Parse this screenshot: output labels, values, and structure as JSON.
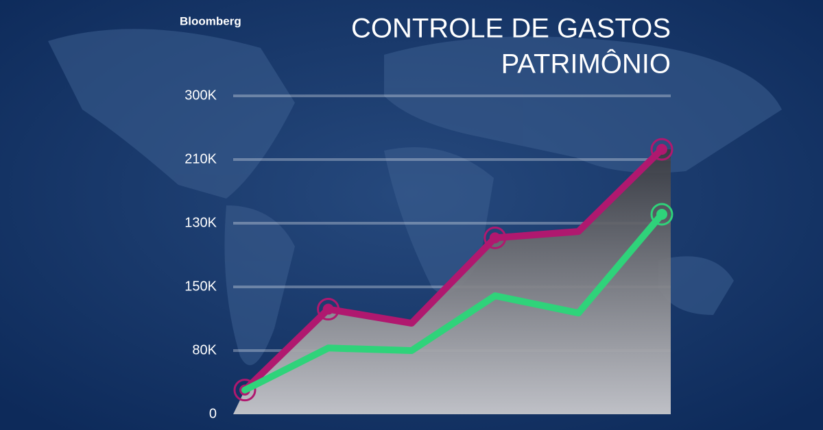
{
  "chart_data": {
    "type": "line",
    "brand": "Bloomberg",
    "title": [
      "CONTROLE DE GASTOS",
      "PATRIMÔNIO"
    ],
    "categories": [
      null,
      null,
      null,
      null,
      null,
      null
    ],
    "y_categories": [
      "0",
      "80K",
      "150K",
      "130K",
      "210K",
      "300K"
    ],
    "ylim": [
      0,
      5
    ],
    "grid": true,
    "area_fill": true,
    "series": [
      {
        "color": "#b0186f",
        "values": [
          0.38,
          1.65,
          1.43,
          2.77,
          2.87,
          4.16
        ],
        "markers": [
          0,
          1,
          3,
          5
        ]
      },
      {
        "color": "#2fd37a",
        "values": [
          0.38,
          1.04,
          1.0,
          1.86,
          1.59,
          3.14
        ],
        "markers": [
          5
        ]
      }
    ]
  }
}
